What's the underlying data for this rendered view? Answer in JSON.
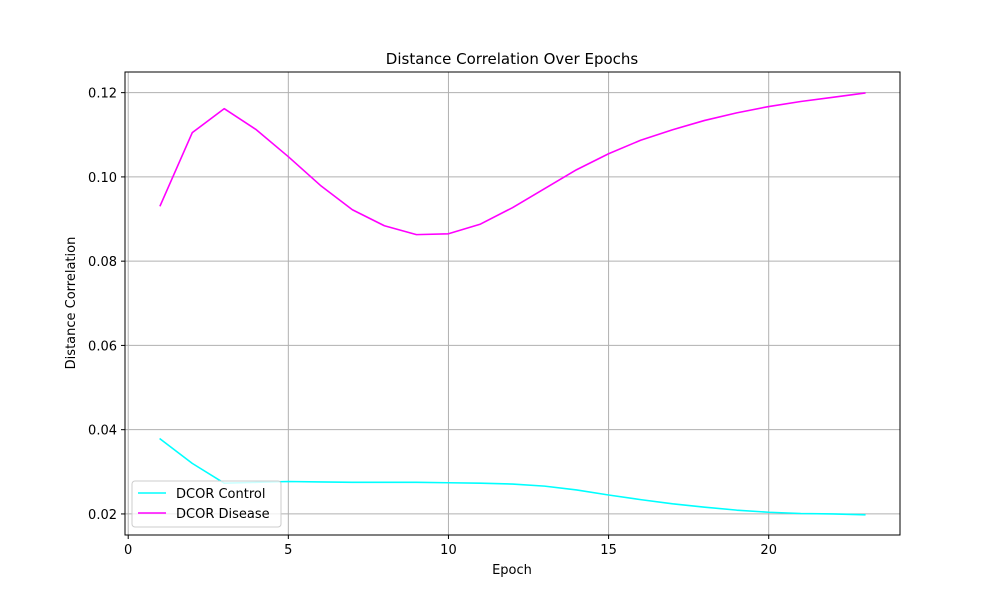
{
  "chart_data": {
    "type": "line",
    "title": "Distance Correlation Over Epochs",
    "xlabel": "Epoch",
    "ylabel": "Distance Correlation",
    "xlim": [
      -0.1,
      24.1
    ],
    "ylim": [
      0.015,
      0.1249
    ],
    "xticks": [
      0,
      5,
      10,
      15,
      20
    ],
    "yticks": [
      0.02,
      0.04,
      0.06,
      0.08,
      0.1,
      0.12
    ],
    "ytick_labels": [
      "0.02",
      "0.04",
      "0.06",
      "0.08",
      "0.10",
      "0.12"
    ],
    "grid": true,
    "legend_position": "lower-left",
    "x": [
      1,
      2,
      3,
      4,
      5,
      6,
      7,
      8,
      9,
      10,
      11,
      12,
      13,
      14,
      15,
      16,
      17,
      18,
      19,
      20,
      21,
      22,
      23
    ],
    "series": [
      {
        "name": "DCOR Control",
        "color": "#00ffff",
        "values": [
          0.0378,
          0.032,
          0.0273,
          0.0275,
          0.0277,
          0.0276,
          0.0275,
          0.0275,
          0.0275,
          0.0274,
          0.0273,
          0.0271,
          0.0266,
          0.0257,
          0.0245,
          0.0234,
          0.0224,
          0.0216,
          0.0209,
          0.0204,
          0.0201,
          0.02,
          0.0198
        ]
      },
      {
        "name": "DCOR Disease",
        "color": "#ff00ff",
        "values": [
          0.0932,
          0.1105,
          0.1162,
          0.1112,
          0.1048,
          0.098,
          0.0922,
          0.0884,
          0.0863,
          0.0865,
          0.0888,
          0.0927,
          0.0972,
          0.1017,
          0.1055,
          0.1087,
          0.1112,
          0.1134,
          0.1152,
          0.1167,
          0.1179,
          0.1189,
          0.1199
        ]
      }
    ]
  }
}
